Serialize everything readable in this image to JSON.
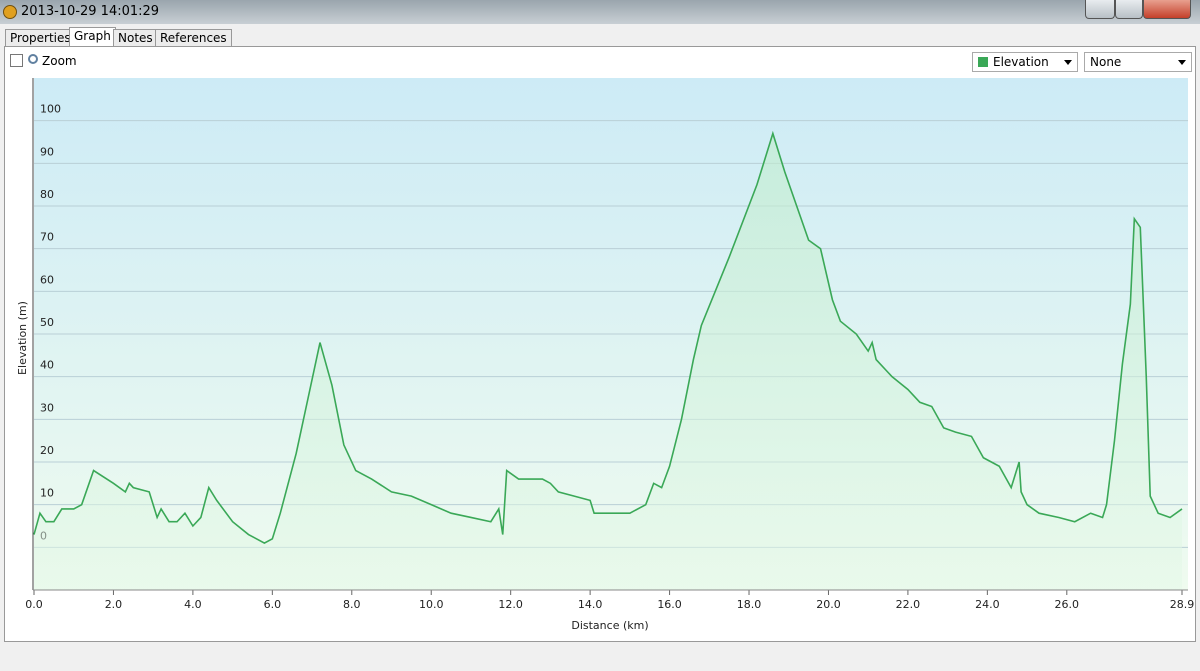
{
  "window": {
    "title": "2013-10-29 14:01:29"
  },
  "tabs": [
    "Properties",
    "Graph",
    "Notes",
    "References"
  ],
  "toolbar": {
    "zoom_label": "Zoom",
    "second_select": "None"
  },
  "chart_data": {
    "type": "line",
    "x_label": "Distance (km)",
    "y_label": "Elevation (m)",
    "x": [
      0,
      0.15,
      0.3,
      0.5,
      0.7,
      1.0,
      1.2,
      1.5,
      2.0,
      2.3,
      2.4,
      2.5,
      2.9,
      3.1,
      3.2,
      3.4,
      3.6,
      3.8,
      4.0,
      4.2,
      4.4,
      4.6,
      5.0,
      5.4,
      5.8,
      6.0,
      6.2,
      6.6,
      6.9,
      7.2,
      7.5,
      7.8,
      8.1,
      8.5,
      9.0,
      9.5,
      10.0,
      10.5,
      11.0,
      11.5,
      11.7,
      11.8,
      11.9,
      12.2,
      12.8,
      13.0,
      13.2,
      13.6,
      14.0,
      14.1,
      14.5,
      15.0,
      15.4,
      15.6,
      15.8,
      16.0,
      16.3,
      16.6,
      16.8,
      17.5,
      18.2,
      18.6,
      18.9,
      19.2,
      19.5,
      19.8,
      20.1,
      20.3,
      20.7,
      21.0,
      21.1,
      21.2,
      21.6,
      22.0,
      22.3,
      22.6,
      22.9,
      23.2,
      23.6,
      23.9,
      24.3,
      24.6,
      24.8,
      24.85,
      25.0,
      25.3,
      25.8,
      26.2,
      26.6,
      26.9,
      27.0,
      27.2,
      27.4,
      27.6,
      27.7,
      27.85,
      28.0,
      28.1,
      28.3,
      28.6,
      28.9
    ],
    "series": [
      {
        "name": "Elevation",
        "color": "#3aa857",
        "values": [
          3,
          8,
          6,
          6,
          9,
          9,
          10,
          18,
          15,
          13,
          15,
          14,
          13,
          7,
          9,
          6,
          6,
          8,
          5,
          7,
          14,
          11,
          6,
          3,
          1,
          2,
          8,
          22,
          35,
          48,
          38,
          24,
          18,
          16,
          13,
          12,
          10,
          8,
          7,
          6,
          9,
          3,
          18,
          16,
          16,
          15,
          13,
          12,
          11,
          8,
          8,
          8,
          10,
          15,
          14,
          19,
          30,
          44,
          52,
          68,
          85,
          97,
          88,
          80,
          72,
          70,
          58,
          53,
          50,
          46,
          48,
          44,
          40,
          37,
          34,
          33,
          28,
          27,
          26,
          21,
          19,
          14,
          20,
          13,
          10,
          8,
          7,
          6,
          8,
          7,
          10,
          25,
          43,
          57,
          77,
          75,
          40,
          12,
          8,
          7,
          9
        ]
      }
    ],
    "xlim": [
      0,
      28.9
    ],
    "ylim": [
      -10,
      110
    ],
    "xticks": [
      {
        "value": 0,
        "label": "0.0"
      },
      {
        "value": 2,
        "label": "2.0"
      },
      {
        "value": 4,
        "label": "4.0"
      },
      {
        "value": 6,
        "label": "6.0"
      },
      {
        "value": 8,
        "label": "8.0"
      },
      {
        "value": 10,
        "label": "10.0"
      },
      {
        "value": 12,
        "label": "12.0"
      },
      {
        "value": 14,
        "label": "14.0"
      },
      {
        "value": 16,
        "label": "16.0"
      },
      {
        "value": 18,
        "label": "18.0"
      },
      {
        "value": 20,
        "label": "20.0"
      },
      {
        "value": 22,
        "label": "22.0"
      },
      {
        "value": 24,
        "label": "24.0"
      },
      {
        "value": 26,
        "label": "26.0"
      },
      {
        "value": 28.9,
        "label": "28.9"
      }
    ],
    "yticks": [
      0,
      10,
      20,
      30,
      40,
      50,
      60,
      70,
      80,
      90,
      100
    ],
    "grid": true
  }
}
